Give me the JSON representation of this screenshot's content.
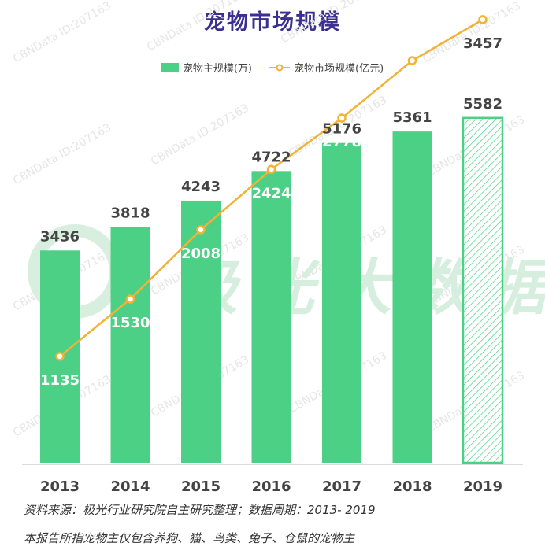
{
  "chart_data": {
    "type": "bar",
    "title": "宠物市场规模",
    "categories": [
      "2013",
      "2014",
      "2015",
      "2016",
      "2017",
      "2018",
      "2019"
    ],
    "series": [
      {
        "name": "宠物主规模(万)",
        "type": "bar",
        "values": [
          3436,
          3818,
          4243,
          4722,
          5176,
          5361,
          5582
        ],
        "color": "#4cd085"
      },
      {
        "name": "宠物市场规模(亿元)",
        "type": "line",
        "values": [
          1135,
          1530,
          2008,
          2424,
          2778,
          3174,
          3457
        ],
        "color": "#f2b234"
      }
    ],
    "highlight_category": "2019",
    "highlight_style": "hatched",
    "legend_position": "top-center",
    "grid": false
  },
  "notes": {
    "source": "资料来源：极光行业研究院自主研究整理；数据周期：2013- 2019",
    "scope": "本报告所指宠物主仅包含养狗、猫、鸟类、兔子、仓鼠的宠物主"
  },
  "watermark": {
    "brand": "极光大数据",
    "id_text": "CBNData ID:207163"
  }
}
